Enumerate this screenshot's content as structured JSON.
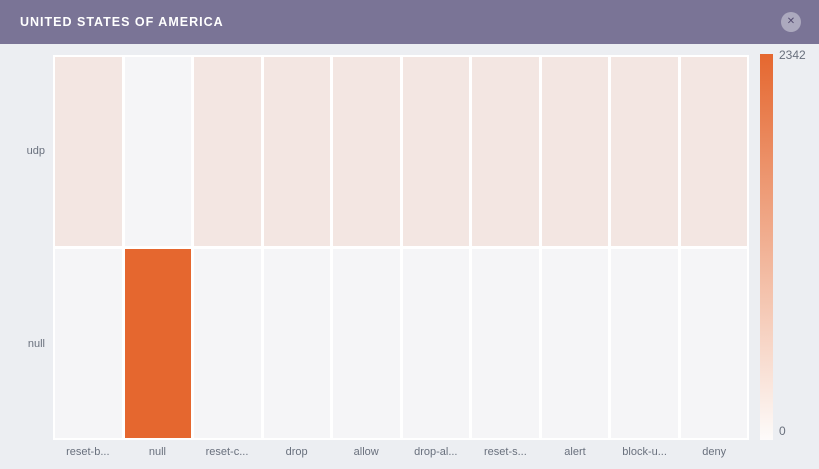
{
  "header": {
    "title": "UNITED STATES OF AMERICA",
    "bg_color": "#7a7496"
  },
  "icons": {
    "close": "✕"
  },
  "chart_data": {
    "type": "heatmap",
    "title": "UNITED STATES OF AMERICA",
    "xlabel": "",
    "ylabel": "",
    "x_categories": [
      "reset-b...",
      "null",
      "reset-c...",
      "drop",
      "allow",
      "drop-al...",
      "reset-s...",
      "alert",
      "block-u...",
      "deny"
    ],
    "y_categories": [
      "udp",
      "null"
    ],
    "series": [
      {
        "name": "udp",
        "values": [
          250,
          0,
          250,
          250,
          250,
          250,
          250,
          250,
          250,
          250
        ]
      },
      {
        "name": "null",
        "values": [
          0,
          2342,
          0,
          0,
          0,
          0,
          0,
          0,
          0,
          0
        ]
      }
    ],
    "colorscale": {
      "min": 0,
      "max": 2342,
      "min_label": "0",
      "max_label": "2342",
      "min_color": "#f5f5f7",
      "max_color": "#e5672f",
      "bar_bottom_color": "#fdfbfa"
    },
    "legend_position": "right",
    "grid": false
  }
}
